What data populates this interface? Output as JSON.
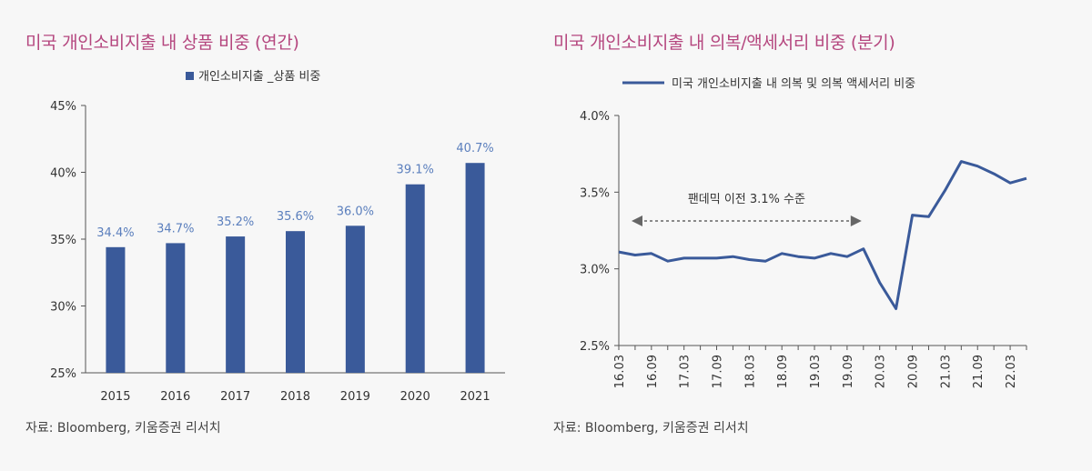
{
  "chart_data": [
    {
      "type": "bar",
      "title": "미국 개인소비지출 내 상품 비중 (연간)",
      "legend": "개인소비지출 _상품 비중",
      "categories": [
        "2015",
        "2016",
        "2017",
        "2018",
        "2019",
        "2020",
        "2021"
      ],
      "values": [
        34.4,
        34.7,
        35.2,
        35.6,
        36.0,
        39.1,
        40.7
      ],
      "value_labels": [
        "34.4%",
        "34.7%",
        "35.2%",
        "35.6%",
        "36.0%",
        "39.1%",
        "40.7%"
      ],
      "ylim": [
        25,
        45
      ],
      "yticks": [
        25,
        30,
        35,
        40,
        45
      ],
      "ytick_labels": [
        "25%",
        "30%",
        "35%",
        "40%",
        "45%"
      ],
      "xlabel": "",
      "ylabel": "",
      "grid": false,
      "legend_position": "top",
      "color": "#3a5a9a",
      "label_color": "#5b7fbd",
      "source": "자료: Bloomberg, 키움증권 리서치"
    },
    {
      "type": "line",
      "title": "미국 개인소비지출 내 의복/액세서리 비중 (분기)",
      "legend": "미국 개인소비지출 내 의복 및 의복 액세서리 비중",
      "x": [
        "16.03",
        "16.06",
        "16.09",
        "16.12",
        "17.03",
        "17.06",
        "17.09",
        "17.12",
        "18.03",
        "18.06",
        "18.09",
        "18.12",
        "19.03",
        "19.06",
        "19.09",
        "19.12",
        "20.03",
        "20.06",
        "20.09",
        "20.12",
        "21.03",
        "21.06",
        "21.09",
        "21.12",
        "22.03",
        "22.06"
      ],
      "values": [
        3.11,
        3.09,
        3.1,
        3.05,
        3.07,
        3.07,
        3.07,
        3.08,
        3.06,
        3.05,
        3.1,
        3.08,
        3.07,
        3.1,
        3.08,
        3.13,
        2.91,
        2.74,
        3.35,
        3.34,
        3.51,
        3.7,
        3.67,
        3.62,
        3.56,
        3.59
      ],
      "xtick_labels": [
        "16.03",
        "16.09",
        "17.03",
        "17.09",
        "18.03",
        "18.09",
        "19.03",
        "19.09",
        "20.03",
        "20.09",
        "21.03",
        "21.09",
        "22.03"
      ],
      "ylim": [
        2.5,
        4.0
      ],
      "yticks": [
        2.5,
        3.0,
        3.5,
        4.0
      ],
      "ytick_labels": [
        "2.5%",
        "3.0%",
        "3.5%",
        "4.0%"
      ],
      "xlabel": "",
      "ylabel": "",
      "grid": false,
      "legend_position": "top",
      "color": "#3a5a9a",
      "annotation": "팬데믹 이전 3.1% 수준",
      "annotation_range": [
        "16.03",
        "19.12"
      ],
      "source": "자료: Bloomberg, 키움증권 리서치"
    }
  ]
}
